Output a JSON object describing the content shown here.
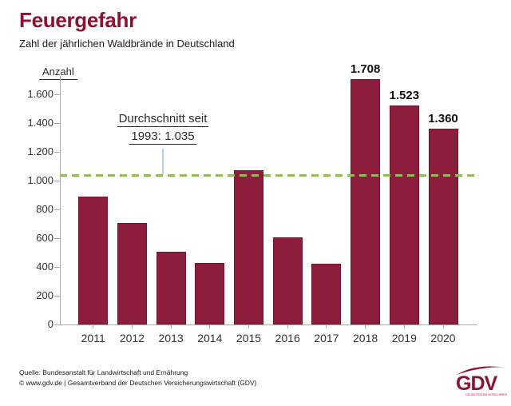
{
  "header": {
    "title": "Feuergefahr",
    "subtitle": "Zahl der jährlichen Waldbrände in Deutschland"
  },
  "chart_data": {
    "type": "bar",
    "title": "Feuergefahr",
    "subtitle": "Zahl der jährlichen Waldbrände in Deutschland",
    "ylabel": "Anzahl",
    "xlabel": "",
    "categories": [
      "2011",
      "2012",
      "2013",
      "2014",
      "2015",
      "2016",
      "2017",
      "2018",
      "2019",
      "2020"
    ],
    "values": [
      888,
      707,
      503,
      429,
      1071,
      608,
      424,
      1708,
      1523,
      1360
    ],
    "value_labels": [
      "",
      "",
      "",
      "",
      "",
      "",
      "",
      "1.708",
      "1.523",
      "1.360"
    ],
    "y_ticks": {
      "values": [
        0,
        200,
        400,
        600,
        800,
        1000,
        1200,
        1400,
        1600
      ],
      "labels": [
        "0",
        "200",
        "400",
        "600",
        "800",
        "1.000",
        "1.200",
        "1.400",
        "1.600"
      ]
    },
    "ylim": [
      0,
      1728
    ],
    "grid": false,
    "legend_position": "none",
    "bar_color": "#8c1d3c",
    "bar_border_color": "#74142d",
    "average_line": {
      "value": 1035,
      "color": "#94bb55",
      "label_line1": "Durchschnitt seit",
      "label_line2": "1993: 1.035",
      "connector_color": "#abd3ea"
    }
  },
  "footer": {
    "source_line1": "Quelle: Bundesanstalt für Landwirtschaft und Ernährung",
    "source_line2": "© www.gdv.de | Gesamtverband der Deutschen Versicherungswirtschaft (GDV)",
    "logo": {
      "text": "GDV",
      "tagline": "DIE DEUTSCHEN VERSICHERER",
      "color": "#8e1230",
      "tagline_color": "#b5123a"
    }
  },
  "colors": {
    "brand": "#8e1230",
    "axis": "#ababab",
    "tick_label": "#333333"
  }
}
